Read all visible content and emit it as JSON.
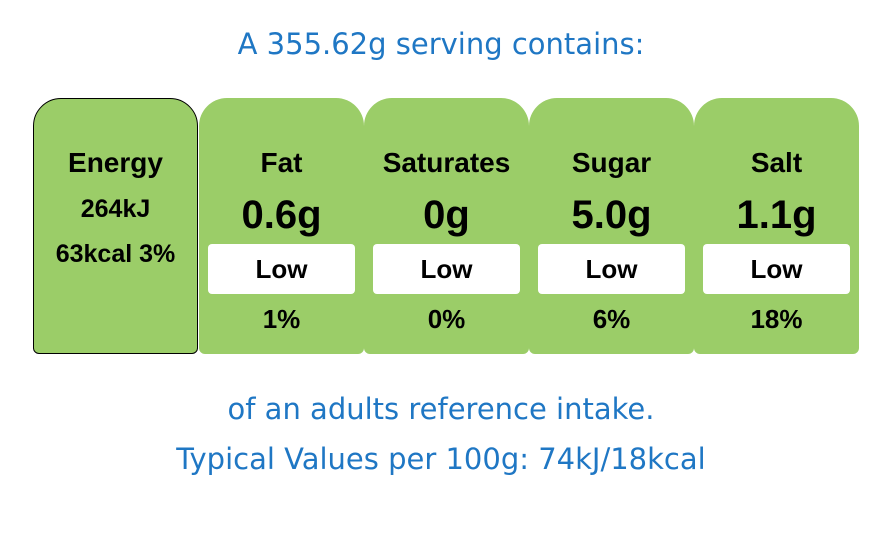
{
  "header": {
    "serving_text": "A 355.62g serving contains:"
  },
  "energy": {
    "title": "Energy",
    "kj": "264kJ",
    "kcal_percent": "63kcal 3%"
  },
  "nutrients": [
    {
      "name": "Fat",
      "amount": "0.6g",
      "level": "Low",
      "percent": "1%"
    },
    {
      "name": "Saturates",
      "amount": "0g",
      "level": "Low",
      "percent": "0%"
    },
    {
      "name": "Sugar",
      "amount": "5.0g",
      "level": "Low",
      "percent": "6%"
    },
    {
      "name": "Salt",
      "amount": "1.1g",
      "level": "Low",
      "percent": "18%"
    }
  ],
  "footer": {
    "reference_text": "of an adults reference intake.",
    "typical_values": "Typical Values per 100g: 74kJ/18kcal"
  },
  "colors": {
    "panel_green": "#9bcd68",
    "text_blue": "#1f77c4",
    "level_box": "#ffffff"
  }
}
